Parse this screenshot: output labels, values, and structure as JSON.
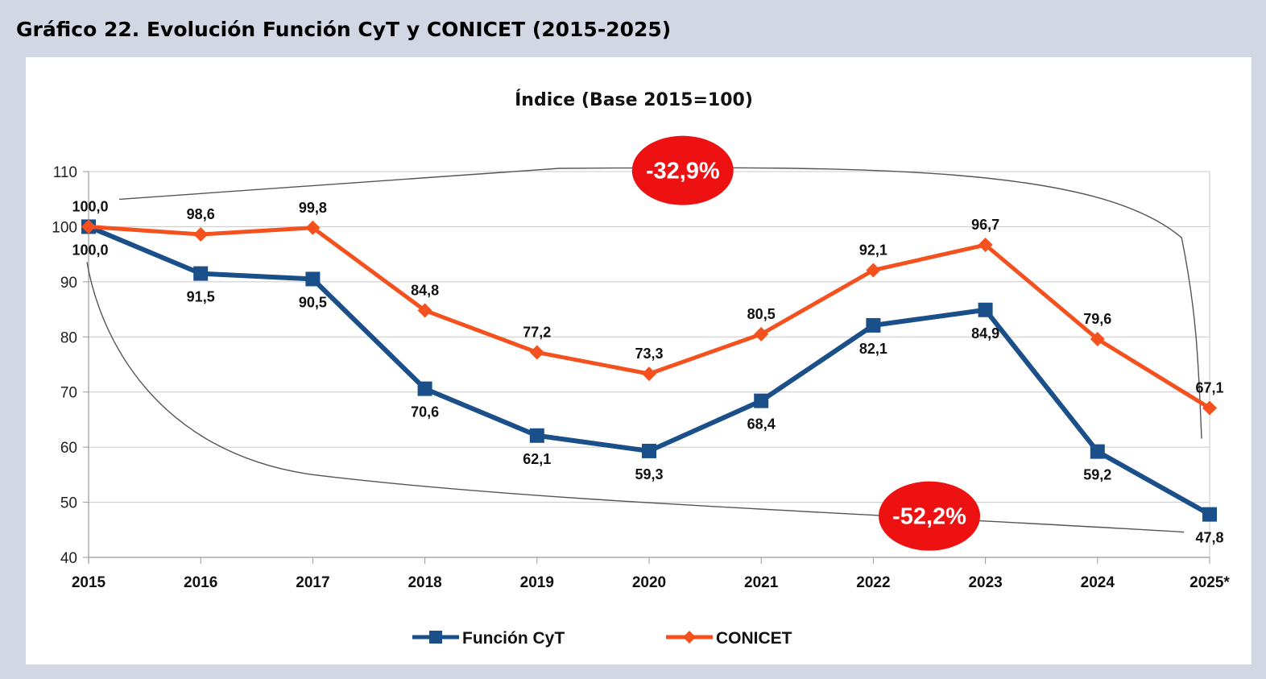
{
  "header": {
    "title": "Gráfico 22. Evolución Función CyT y CONICET (2015-2025)"
  },
  "chart_data": {
    "type": "line",
    "title": "Índice (Base 2015=100)",
    "xlabel": "",
    "ylabel": "",
    "categories": [
      "2015",
      "2016",
      "2017",
      "2018",
      "2019",
      "2020",
      "2021",
      "2022",
      "2023",
      "2024",
      "2025*"
    ],
    "ylim": [
      40,
      110
    ],
    "yticks": [
      "40",
      "50",
      "60",
      "70",
      "80",
      "90",
      "100",
      "110"
    ],
    "grid": true,
    "legend_position": "bottom",
    "series": [
      {
        "name": "Función CyT",
        "color": "#1b4f8a",
        "marker": "square",
        "values": [
          100.0,
          91.5,
          90.5,
          70.6,
          62.1,
          59.3,
          68.4,
          82.1,
          84.9,
          59.2,
          47.8
        ],
        "labels": [
          "100,0",
          "91,5",
          "90,5",
          "70,6",
          "62,1",
          "59,3",
          "68,4",
          "82,1",
          "84,9",
          "59,2",
          "47,8"
        ]
      },
      {
        "name": "CONICET",
        "color": "#f4511e",
        "marker": "diamond",
        "values": [
          100.0,
          98.6,
          99.8,
          84.8,
          77.2,
          73.3,
          80.5,
          92.1,
          96.7,
          79.6,
          67.1
        ],
        "labels": [
          "100,0",
          "98,6",
          "99,8",
          "84,8",
          "77,2",
          "73,3",
          "80,5",
          "92,1",
          "96,7",
          "79,6",
          "67,1"
        ]
      }
    ],
    "annotations": [
      {
        "text": "-32,9%",
        "color": "#ee1111"
      },
      {
        "text": "-52,2%",
        "color": "#ee1111"
      }
    ]
  }
}
